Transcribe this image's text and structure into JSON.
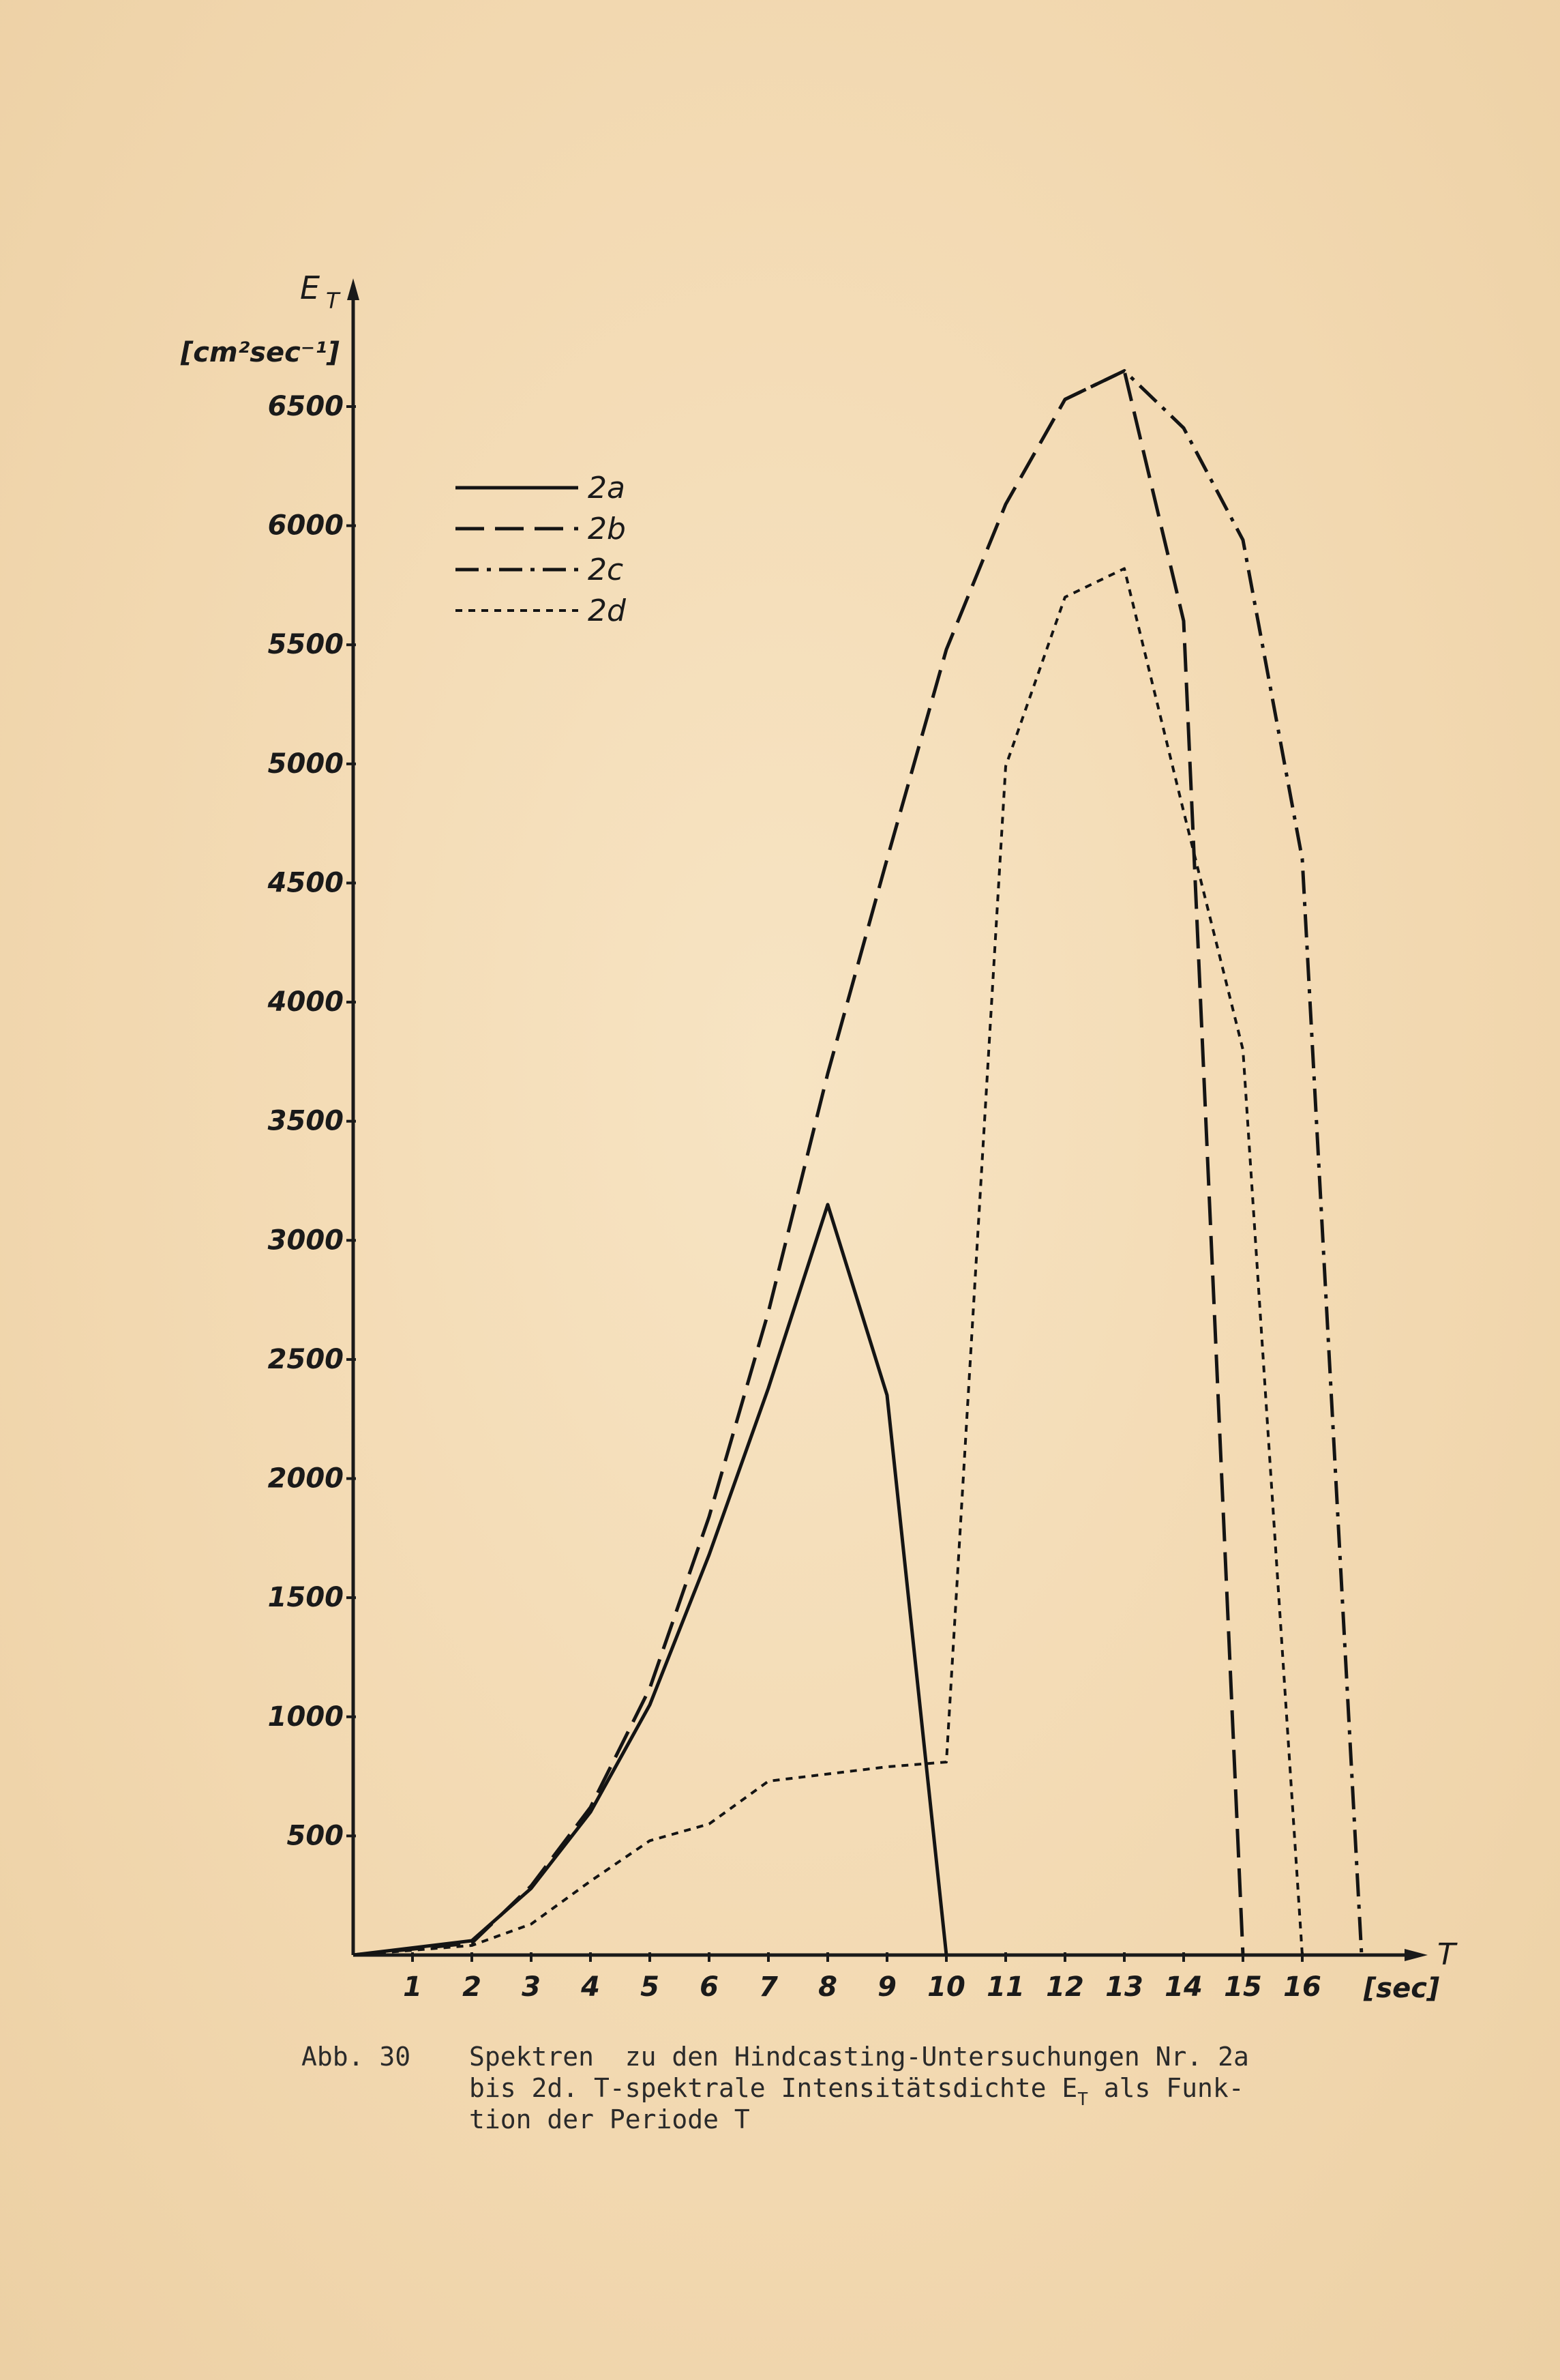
{
  "chart_data": {
    "type": "line",
    "y_axis_symbol": "E",
    "y_axis_symbol_sub": "T",
    "y_unit": "[cm²sec⁻¹]",
    "x_axis_symbol": "T",
    "x_unit": "[sec]",
    "xlim": [
      0,
      17
    ],
    "ylim": [
      0,
      6500
    ],
    "x_ticks": [
      1,
      2,
      3,
      4,
      5,
      6,
      7,
      8,
      9,
      10,
      11,
      12,
      13,
      14,
      15,
      16
    ],
    "x_tick_labels": [
      "1",
      "2",
      "3",
      "4",
      "5",
      "6",
      "7",
      "8",
      "9",
      "10",
      "11",
      "12",
      "13",
      "14",
      "15",
      "16"
    ],
    "y_ticks": [
      500,
      1000,
      1500,
      2000,
      2500,
      3000,
      3500,
      4000,
      4500,
      5000,
      5500,
      6000,
      6500
    ],
    "y_tick_labels": [
      "500",
      "1000",
      "1500",
      "2000",
      "2500",
      "3000",
      "3500",
      "4000",
      "4500",
      "5000",
      "5500",
      "6000",
      "6500"
    ],
    "grid": false,
    "legend_placement": "top-left",
    "series": [
      {
        "name": "2a",
        "style": "solid",
        "x": [
          0,
          2,
          3,
          4,
          5,
          6,
          7,
          8,
          9,
          10
        ],
        "y": [
          0,
          60,
          280,
          600,
          1050,
          1680,
          2380,
          3150,
          2350,
          0
        ]
      },
      {
        "name": "2b",
        "style": "dashed",
        "x": [
          0,
          2,
          3,
          4,
          5,
          6,
          7,
          8,
          9,
          10,
          11,
          12,
          13,
          14,
          15
        ],
        "y": [
          0,
          50,
          290,
          620,
          1120,
          1840,
          2700,
          3700,
          4600,
          5480,
          6090,
          6530,
          6650,
          5600,
          0
        ]
      },
      {
        "name": "2c",
        "style": "dashdot",
        "x": [
          12,
          13,
          14,
          15,
          16,
          17
        ],
        "y": [
          6530,
          6650,
          6410,
          5940,
          4600,
          0
        ]
      },
      {
        "name": "2d",
        "style": "dotted",
        "x": [
          0,
          2,
          3,
          4,
          5,
          6,
          7,
          8,
          9,
          10,
          11,
          12,
          13,
          14,
          15,
          16
        ],
        "y": [
          0,
          40,
          130,
          310,
          480,
          550,
          730,
          760,
          790,
          810,
          4990,
          5700,
          5820,
          4800,
          3800,
          0
        ]
      }
    ]
  },
  "caption": {
    "label": "Abb. 30",
    "line1": "Spektren  zu den Hindcasting-Untersuchungen Nr. 2a",
    "line2_a": "bis 2d. T-spektrale Intensitätsdichte E",
    "line2_sub": "T",
    "line2_b": " als Funk-",
    "line3": "tion der Periode T"
  }
}
